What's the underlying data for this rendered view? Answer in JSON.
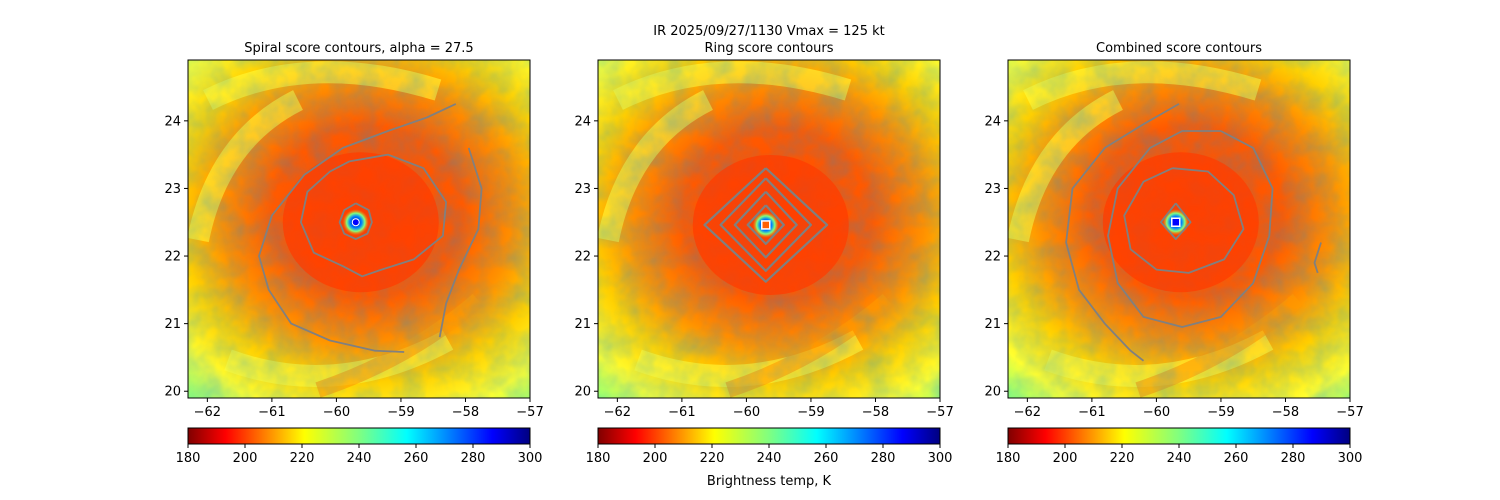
{
  "figure": {
    "title_line1": "IR  2025/09/27/1130    Vmax = 125 kt",
    "colorbar_label": "Brightness temp, K"
  },
  "chart_data": [
    {
      "type": "heatmap",
      "title": "Spiral score contours, alpha = 27.5",
      "xlim": [
        -62.3,
        -57.0
      ],
      "ylim": [
        19.9,
        24.9
      ],
      "xticks": [
        -62,
        -61,
        -60,
        -59,
        -58,
        -57
      ],
      "yticks": [
        20,
        21,
        22,
        23,
        24
      ],
      "center": {
        "lon": -59.7,
        "lat": 22.5
      },
      "marker_style": "blue-dot",
      "contours": [
        {
          "name": "inner",
          "points": [
            [
              -59.7,
              22.78
            ],
            [
              -59.5,
              22.68
            ],
            [
              -59.45,
              22.5
            ],
            [
              -59.52,
              22.33
            ],
            [
              -59.7,
              22.25
            ],
            [
              -59.88,
              22.33
            ],
            [
              -59.95,
              22.5
            ],
            [
              -59.88,
              22.68
            ],
            [
              -59.7,
              22.78
            ]
          ]
        },
        {
          "name": "middle",
          "points": [
            [
              -59.8,
              23.4
            ],
            [
              -59.2,
              23.5
            ],
            [
              -58.65,
              23.3
            ],
            [
              -58.3,
              22.8
            ],
            [
              -58.35,
              22.3
            ],
            [
              -58.8,
              21.95
            ],
            [
              -59.3,
              21.8
            ],
            [
              -59.6,
              21.7
            ],
            [
              -59.9,
              21.85
            ],
            [
              -60.35,
              22.05
            ],
            [
              -60.55,
              22.5
            ],
            [
              -60.45,
              22.95
            ],
            [
              -60.1,
              23.25
            ],
            [
              -59.8,
              23.4
            ]
          ]
        },
        {
          "name": "outer-spiral-1",
          "points": [
            [
              -58.15,
              24.25
            ],
            [
              -58.6,
              24.05
            ],
            [
              -59.2,
              23.85
            ],
            [
              -59.9,
              23.6
            ],
            [
              -60.5,
              23.2
            ],
            [
              -61.0,
              22.6
            ],
            [
              -61.2,
              22.0
            ],
            [
              -61.05,
              21.5
            ],
            [
              -60.7,
              21.0
            ],
            [
              -60.1,
              20.75
            ],
            [
              -59.4,
              20.6
            ],
            [
              -58.95,
              20.58
            ]
          ]
        },
        {
          "name": "outer-spiral-2",
          "points": [
            [
              -57.95,
              23.6
            ],
            [
              -57.75,
              23.0
            ],
            [
              -57.8,
              22.4
            ],
            [
              -58.1,
              21.8
            ],
            [
              -58.3,
              21.3
            ],
            [
              -58.4,
              20.8
            ]
          ]
        }
      ]
    },
    {
      "type": "heatmap",
      "title": "Ring score contours",
      "xlim": [
        -62.3,
        -57.0
      ],
      "ylim": [
        19.9,
        24.9
      ],
      "xticks": [
        -62,
        -61,
        -60,
        -59,
        -58,
        -57
      ],
      "yticks": [
        20,
        21,
        22,
        23,
        24
      ],
      "center": {
        "lon": -59.7,
        "lat": 22.46
      },
      "marker_style": "white-square",
      "contours": [
        {
          "name": "ring-1",
          "points": [
            [
              -59.7,
              22.75
            ],
            [
              -59.42,
              22.46
            ],
            [
              -59.7,
              22.18
            ],
            [
              -59.98,
              22.46
            ],
            [
              -59.7,
              22.75
            ]
          ]
        },
        {
          "name": "ring-2",
          "points": [
            [
              -59.7,
              22.95
            ],
            [
              -59.22,
              22.46
            ],
            [
              -59.7,
              21.98
            ],
            [
              -60.18,
              22.46
            ],
            [
              -59.7,
              22.95
            ]
          ]
        },
        {
          "name": "ring-3",
          "points": [
            [
              -59.7,
              23.15
            ],
            [
              -59.0,
              22.46
            ],
            [
              -59.7,
              21.78
            ],
            [
              -60.4,
              22.46
            ],
            [
              -59.7,
              23.15
            ]
          ]
        },
        {
          "name": "ring-4",
          "points": [
            [
              -59.7,
              23.3
            ],
            [
              -58.75,
              22.46
            ],
            [
              -59.7,
              21.62
            ],
            [
              -60.65,
              22.46
            ],
            [
              -59.7,
              23.3
            ]
          ]
        }
      ]
    },
    {
      "type": "heatmap",
      "title": "Combined score contours",
      "xlim": [
        -62.3,
        -57.0
      ],
      "ylim": [
        19.9,
        24.9
      ],
      "xticks": [
        -62,
        -61,
        -60,
        -59,
        -58,
        -57
      ],
      "yticks": [
        20,
        21,
        22,
        23,
        24
      ],
      "center": {
        "lon": -59.7,
        "lat": 22.5
      },
      "marker_style": "blue-square",
      "contours": [
        {
          "name": "inner",
          "points": [
            [
              -59.7,
              22.78
            ],
            [
              -59.47,
              22.5
            ],
            [
              -59.7,
              22.25
            ],
            [
              -59.93,
              22.5
            ],
            [
              -59.7,
              22.78
            ]
          ]
        },
        {
          "name": "middle",
          "points": [
            [
              -59.75,
              23.3
            ],
            [
              -59.2,
              23.25
            ],
            [
              -58.8,
              22.9
            ],
            [
              -58.65,
              22.4
            ],
            [
              -58.95,
              21.95
            ],
            [
              -59.5,
              21.75
            ],
            [
              -60.0,
              21.8
            ],
            [
              -60.4,
              22.1
            ],
            [
              -60.5,
              22.6
            ],
            [
              -60.2,
              23.1
            ],
            [
              -59.75,
              23.3
            ]
          ]
        },
        {
          "name": "outer",
          "points": [
            [
              -59.0,
              23.85
            ],
            [
              -58.5,
              23.6
            ],
            [
              -58.2,
              23.0
            ],
            [
              -58.25,
              22.3
            ],
            [
              -58.5,
              21.6
            ],
            [
              -59.0,
              21.1
            ],
            [
              -59.6,
              20.95
            ],
            [
              -60.2,
              21.1
            ],
            [
              -60.6,
              21.6
            ],
            [
              -60.75,
              22.3
            ],
            [
              -60.6,
              23.0
            ],
            [
              -60.1,
              23.6
            ],
            [
              -59.6,
              23.85
            ],
            [
              -59.0,
              23.85
            ]
          ]
        },
        {
          "name": "outer-arm",
          "points": [
            [
              -59.65,
              24.25
            ],
            [
              -60.2,
              23.95
            ],
            [
              -60.8,
              23.6
            ],
            [
              -61.3,
              23.0
            ],
            [
              -61.4,
              22.2
            ],
            [
              -61.2,
              21.5
            ],
            [
              -60.8,
              21.0
            ],
            [
              -60.4,
              20.6
            ],
            [
              -60.2,
              20.45
            ]
          ]
        },
        {
          "name": "east-fragment",
          "points": [
            [
              -57.45,
              22.2
            ],
            [
              -57.55,
              21.9
            ],
            [
              -57.5,
              21.75
            ]
          ]
        }
      ]
    }
  ],
  "colorbar": {
    "vmin": 180,
    "vmax": 300,
    "ticks": [
      180,
      200,
      220,
      240,
      260,
      280,
      300
    ],
    "colormap": [
      "#800000",
      "#ff0000",
      "#ff8000",
      "#ffff00",
      "#80ff80",
      "#00ffff",
      "#0080ff",
      "#0000ff",
      "#000080"
    ],
    "contour_color": "#808080"
  }
}
